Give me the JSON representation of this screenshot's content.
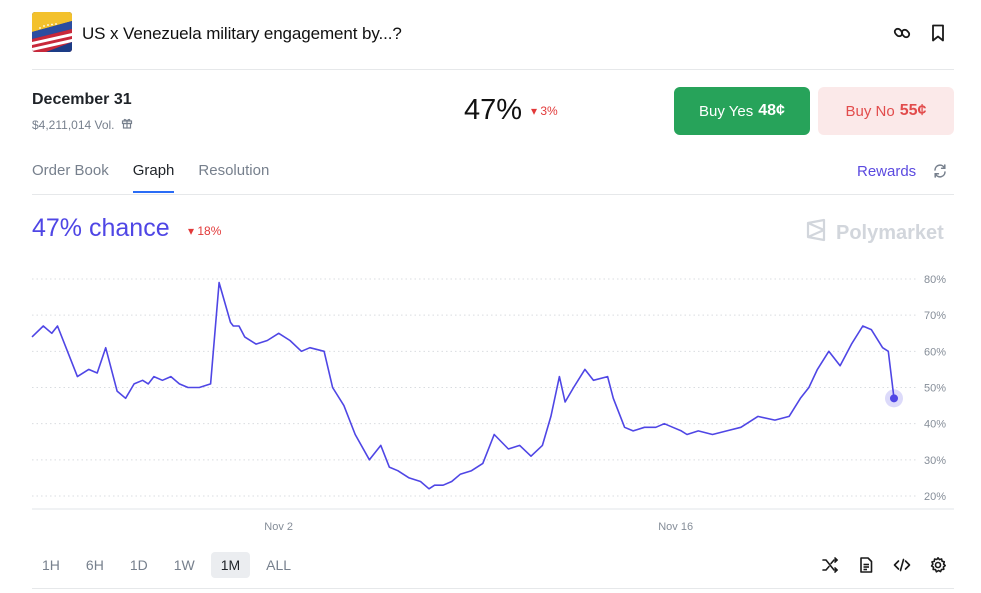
{
  "header": {
    "title": "US x Venezuela military engagement by...?",
    "flag_icon": "us-venezuela-flag-icon",
    "link_icon": "link-icon",
    "bookmark_icon": "bookmark-icon"
  },
  "market": {
    "date": "December 31",
    "volume": "$4,211,014 Vol.",
    "price_pct": "47%",
    "price_change": "3%",
    "buy_yes_label": "Buy Yes",
    "buy_yes_price": "48¢",
    "buy_no_label": "Buy No",
    "buy_no_price": "55¢"
  },
  "tabs": [
    {
      "label": "Order Book",
      "active": false
    },
    {
      "label": "Graph",
      "active": true
    },
    {
      "label": "Resolution",
      "active": false
    }
  ],
  "rewards_label": "Rewards",
  "chart_header": {
    "chance": "47% chance",
    "change": "18%",
    "brand": "Polymarket"
  },
  "ranges": [
    {
      "label": "1H",
      "active": false
    },
    {
      "label": "6H",
      "active": false
    },
    {
      "label": "1D",
      "active": false
    },
    {
      "label": "1W",
      "active": false
    },
    {
      "label": "1M",
      "active": true
    },
    {
      "label": "ALL",
      "active": false
    }
  ],
  "colors": {
    "line": "#4f46e5",
    "yes": "#27a35a",
    "no": "#e24c4c",
    "down": "#e23939"
  },
  "chart_data": {
    "type": "line",
    "yticks": [
      "80%",
      "70%",
      "60%",
      "50%",
      "40%",
      "30%",
      "20%"
    ],
    "ylim": [
      20,
      80
    ],
    "xticks": [
      {
        "label": "Nov 2",
        "x": 8.7
      },
      {
        "label": "Nov 16",
        "x": 22.7
      }
    ],
    "xlim": [
      0,
      31
    ],
    "grid": true,
    "series": [
      {
        "x": [
          0,
          0.4,
          0.7,
          0.9,
          1.3,
          1.6,
          2.0,
          2.3,
          2.6,
          3.0,
          3.3,
          3.6,
          3.9,
          4.1,
          4.3,
          4.6,
          4.9,
          5.2,
          5.5,
          5.9,
          6.3,
          6.6,
          7.0,
          7.1,
          7.3,
          7.5,
          7.9,
          8.3,
          8.7,
          9.1,
          9.5,
          9.8,
          10.3,
          10.6,
          11.0,
          11.4,
          11.9,
          12.3,
          12.6,
          12.9,
          13.3,
          13.7,
          14.0,
          14.2,
          14.5,
          14.8,
          15.1,
          15.5,
          15.9,
          16.3,
          16.8,
          17.2,
          17.6,
          18.0,
          18.3,
          18.6,
          18.8,
          19.1,
          19.5,
          19.8,
          20.3,
          20.5,
          20.9,
          21.2,
          21.6,
          22.0,
          22.3,
          22.6,
          22.9,
          23.1,
          23.5,
          24.0,
          24.5,
          25.0,
          25.6,
          26.2,
          26.7,
          27.1,
          27.4,
          27.7,
          28.1,
          28.5,
          28.9,
          29.3,
          29.6,
          30.0,
          30.2,
          30.4
        ],
        "y": [
          64,
          67,
          65,
          67,
          59,
          53,
          55,
          54,
          61,
          49,
          47,
          51,
          52,
          51,
          53,
          52,
          53,
          51,
          50,
          50,
          51,
          79,
          68,
          67,
          67,
          64,
          62,
          63,
          65,
          63,
          60,
          61,
          60,
          50,
          45,
          37,
          30,
          34,
          28,
          27,
          25,
          24,
          22,
          23,
          23,
          24,
          26,
          27,
          29,
          37,
          33,
          34,
          31,
          34,
          42,
          53,
          46,
          50,
          55,
          52,
          53,
          47,
          39,
          38,
          39,
          39,
          40,
          39,
          38,
          37,
          38,
          37,
          38,
          39,
          42,
          41,
          42,
          47,
          50,
          55,
          60,
          56,
          62,
          67,
          66,
          61,
          60,
          47
        ]
      }
    ]
  }
}
